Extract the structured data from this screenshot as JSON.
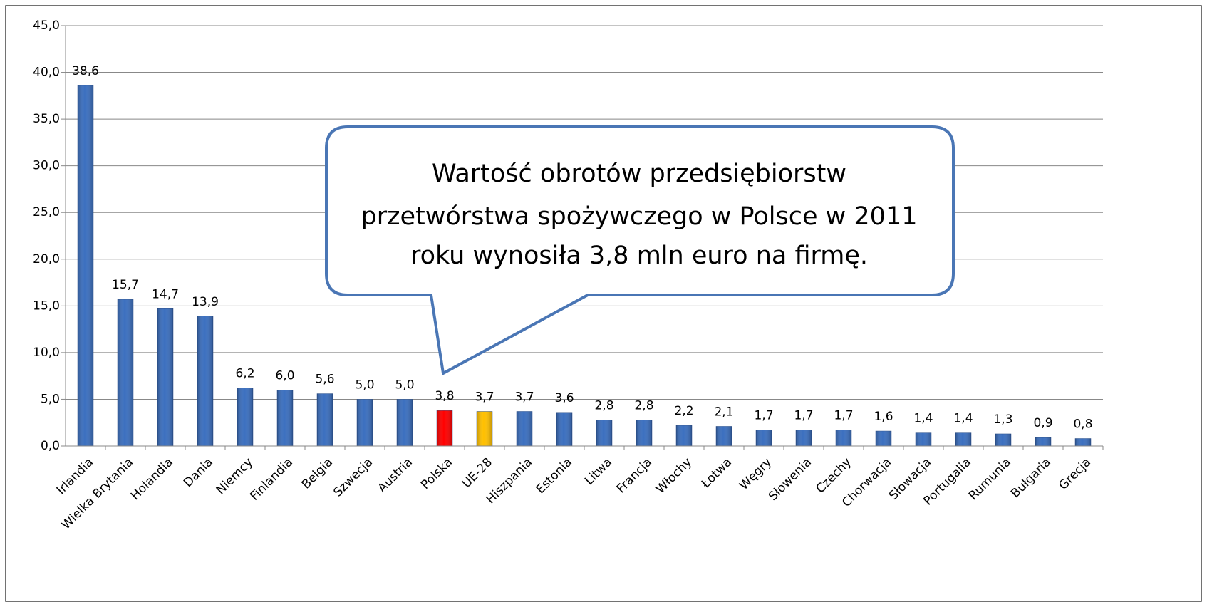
{
  "chart_data": {
    "type": "bar",
    "categories": [
      "Irlandia",
      "Wielka Brytania",
      "Holandia",
      "Dania",
      "Niemcy",
      "Finlandia",
      "Belgia",
      "Szwecja",
      "Austria",
      "Polska",
      "UE-28",
      "Hiszpania",
      "Estonia",
      "Litwa",
      "Francja",
      "Włochy",
      "Łotwa",
      "Węgry",
      "Słowenia",
      "Czechy",
      "Chorwacja",
      "Słowacja",
      "Portugalia",
      "Rumunia",
      "Bułgaria",
      "Grecja"
    ],
    "values": [
      38.6,
      15.7,
      14.7,
      13.9,
      6.2,
      6.0,
      5.6,
      5.0,
      5.0,
      3.8,
      3.7,
      3.7,
      3.6,
      2.8,
      2.8,
      2.2,
      2.1,
      1.7,
      1.7,
      1.7,
      1.6,
      1.4,
      1.4,
      1.3,
      0.9,
      0.8
    ],
    "value_labels": [
      "38,6",
      "15,7",
      "14,7",
      "13,9",
      "6,2",
      "6,0",
      "5,6",
      "5,0",
      "5,0",
      "3,8",
      "3,7",
      "3,7",
      "3,6",
      "2,8",
      "2,8",
      "2,2",
      "2,1",
      "1,7",
      "1,7",
      "1,7",
      "1,6",
      "1,4",
      "1,4",
      "1,3",
      "0,9",
      "0,8"
    ],
    "colors": [
      "#3b6fbf",
      "#3b6fbf",
      "#3b6fbf",
      "#3b6fbf",
      "#3b6fbf",
      "#3b6fbf",
      "#3b6fbf",
      "#3b6fbf",
      "#3b6fbf",
      "#ff0000",
      "#ffc000",
      "#3b6fbf",
      "#3b6fbf",
      "#3b6fbf",
      "#3b6fbf",
      "#3b6fbf",
      "#3b6fbf",
      "#3b6fbf",
      "#3b6fbf",
      "#3b6fbf",
      "#3b6fbf",
      "#3b6fbf",
      "#3b6fbf",
      "#3b6fbf",
      "#3b6fbf",
      "#3b6fbf"
    ],
    "ylim": [
      0,
      45
    ],
    "yticks": [
      {
        "value": 0,
        "label": "0,0"
      },
      {
        "value": 5,
        "label": "5,0"
      },
      {
        "value": 10,
        "label": "10,0"
      },
      {
        "value": 15,
        "label": "15,0"
      },
      {
        "value": 20,
        "label": "20,0"
      },
      {
        "value": 25,
        "label": "25,0"
      },
      {
        "value": 30,
        "label": "30,0"
      },
      {
        "value": 35,
        "label": "35,0"
      },
      {
        "value": 40,
        "label": "40,0"
      },
      {
        "value": 45,
        "label": "45,0"
      }
    ],
    "grid": true,
    "annotation": [
      "Wartość obrotów przedsiębiorstw",
      "przetwórstwa spożywczego w Polsce w 2011",
      "roku wynosiła 3,8 mln euro na firmę."
    ]
  }
}
